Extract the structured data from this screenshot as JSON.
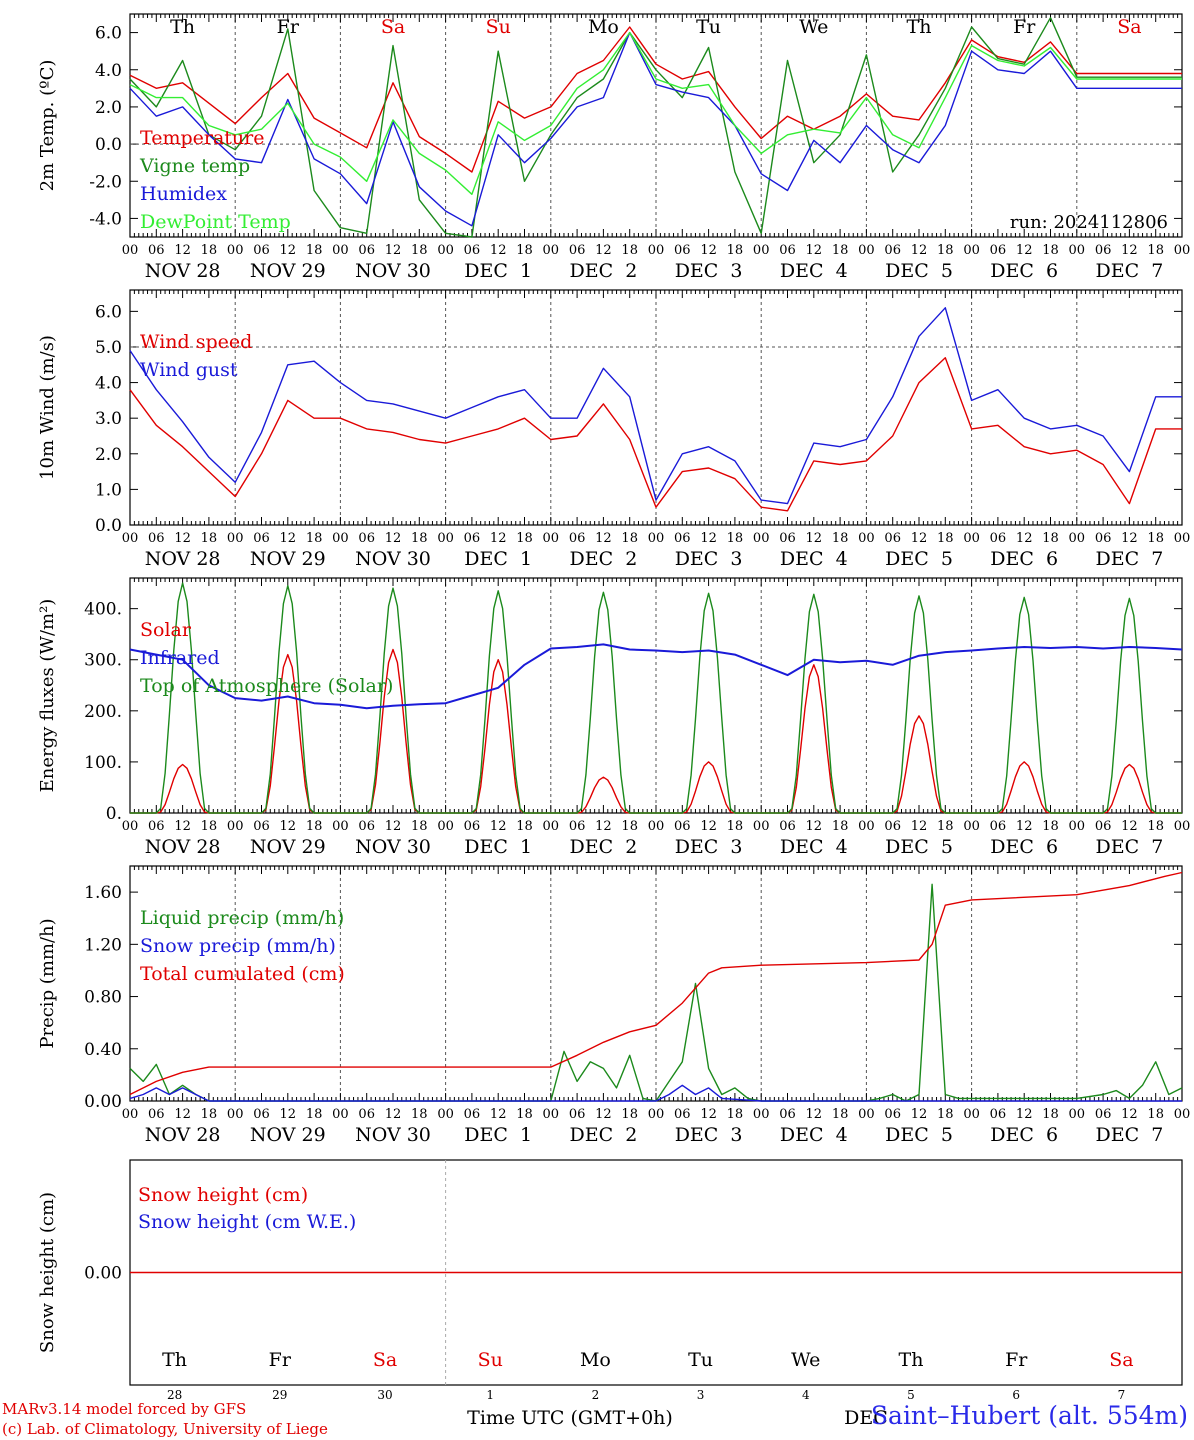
{
  "footer": {
    "credit_line1": "MARv3.14 model forced by GFS",
    "credit_line2": "(c) Lab. of Climatology, University of Liege",
    "station": "Saint–Hubert (alt. 554m)",
    "axis_title": "Time UTC (GMT+0h)",
    "overlap_label": "DEC"
  },
  "run_label": "run: 2024112806",
  "colors": {
    "red": "#e00000",
    "green": "#1c8a1c",
    "blue": "#1a1ad8",
    "lightgreen": "#33ee33",
    "weekend": "#e00000",
    "weekday": "#000000"
  },
  "day_names": [
    "Th",
    "Fr",
    "Sa",
    "Su",
    "Mo",
    "Tu",
    "We",
    "Th",
    "Fr",
    "Sa"
  ],
  "weekend_index": [
    2,
    3,
    9
  ],
  "date_labels": [
    "NOV 28",
    "NOV 29",
    "NOV 30",
    "DEC  1",
    "DEC  2",
    "DEC  3",
    "DEC  4",
    "DEC  5",
    "DEC  6",
    "DEC  7"
  ],
  "day_numbers": [
    "28",
    "29",
    "30",
    "1",
    "2",
    "3",
    "4",
    "5",
    "6",
    "7"
  ],
  "hour_ticks": [
    "00",
    "06",
    "12",
    "18"
  ],
  "last_hour_tick": "00",
  "chart_data": [
    {
      "type": "line",
      "ylabel": "2m Temp. (ºC)",
      "ylim": [
        -5,
        7
      ],
      "yticks": [
        "6.0",
        "4.0",
        "2.0",
        "0.0",
        "-2.0",
        "-4.0"
      ],
      "ytick_values": [
        6,
        4,
        2,
        0,
        -2,
        -4
      ],
      "dashed_hline": 0,
      "x_hours": [
        0,
        6,
        12,
        18,
        24,
        30,
        36,
        42,
        48,
        54,
        60,
        66,
        72,
        78,
        84,
        90,
        96,
        102,
        108,
        114,
        120,
        126,
        132,
        138,
        144,
        150,
        156,
        162,
        168,
        174,
        180,
        186,
        192,
        198,
        204,
        210,
        216,
        222,
        228,
        234,
        240
      ],
      "series": [
        {
          "name": "Temperature",
          "color": "red",
          "values": [
            3.7,
            3.0,
            3.3,
            2.2,
            1.1,
            2.5,
            3.8,
            1.4,
            0.6,
            -0.2,
            3.3,
            0.4,
            -0.5,
            -1.5,
            2.3,
            1.4,
            2.0,
            3.8,
            4.5,
            6.3,
            4.3,
            3.5,
            3.9,
            2.0,
            0.3,
            1.5,
            0.8,
            1.5,
            2.7,
            1.5,
            1.3,
            3.3,
            5.6,
            4.7,
            4.4,
            5.5,
            3.8,
            3.8,
            3.8,
            3.8,
            3.8
          ]
        },
        {
          "name": "Vigne temp",
          "color": "green",
          "values": [
            3.5,
            2.0,
            4.5,
            0.5,
            -0.3,
            1.5,
            6.2,
            -2.5,
            -4.5,
            -4.8,
            5.3,
            -3.0,
            -4.8,
            -5.0,
            5.0,
            -2.0,
            0.5,
            2.5,
            3.5,
            6.0,
            4.0,
            2.5,
            5.2,
            -1.5,
            -4.8,
            4.5,
            -1.0,
            0.5,
            4.8,
            -1.5,
            0.5,
            3.0,
            6.3,
            4.6,
            4.3,
            6.8,
            3.6,
            3.6,
            3.6,
            3.6,
            3.6
          ]
        },
        {
          "name": "Humidex",
          "color": "blue",
          "values": [
            3.0,
            1.5,
            2.0,
            0.5,
            -0.8,
            -1.0,
            2.4,
            -0.8,
            -1.6,
            -3.2,
            1.2,
            -2.3,
            -3.6,
            -4.4,
            0.5,
            -1.0,
            0.3,
            2.0,
            2.5,
            6.0,
            3.2,
            2.8,
            2.5,
            1.0,
            -1.6,
            -2.5,
            0.2,
            -1.0,
            1.0,
            -0.3,
            -1.0,
            1.0,
            5.0,
            4.0,
            3.8,
            5.0,
            3.0,
            3.0,
            3.0,
            3.0,
            3.0
          ]
        },
        {
          "name": "DewPoint Temp",
          "color": "lightgreen",
          "values": [
            3.2,
            2.5,
            2.5,
            1.0,
            0.5,
            0.8,
            2.2,
            0.0,
            -0.7,
            -2.0,
            1.3,
            -0.5,
            -1.4,
            -2.7,
            1.2,
            0.2,
            1.0,
            3.0,
            4.0,
            6.0,
            3.5,
            3.0,
            3.2,
            1.0,
            -0.5,
            0.5,
            0.8,
            0.6,
            2.5,
            0.5,
            -0.2,
            2.5,
            5.3,
            4.5,
            4.2,
            5.2,
            3.5,
            3.5,
            3.5,
            3.5,
            3.5
          ]
        }
      ]
    },
    {
      "type": "line",
      "ylabel": "10m Wind (m/s)",
      "ylim": [
        0,
        6.6
      ],
      "yticks": [
        "6.0",
        "5.0",
        "4.0",
        "3.0",
        "2.0",
        "1.0",
        "0.0"
      ],
      "ytick_values": [
        6,
        5,
        4,
        3,
        2,
        1,
        0
      ],
      "dashed_hline": 5,
      "x_hours": [
        0,
        6,
        12,
        18,
        24,
        30,
        36,
        42,
        48,
        54,
        60,
        66,
        72,
        78,
        84,
        90,
        96,
        102,
        108,
        114,
        120,
        126,
        132,
        138,
        144,
        150,
        156,
        162,
        168,
        174,
        180,
        186,
        192,
        198,
        204,
        210,
        216,
        222,
        228,
        234,
        240
      ],
      "series": [
        {
          "name": "Wind speed",
          "color": "red",
          "values": [
            3.8,
            2.8,
            2.2,
            1.5,
            0.8,
            2.0,
            3.5,
            3.0,
            3.0,
            2.7,
            2.6,
            2.4,
            2.3,
            2.5,
            2.7,
            3.0,
            2.4,
            2.5,
            3.4,
            2.4,
            0.5,
            1.5,
            1.6,
            1.3,
            0.5,
            0.4,
            1.8,
            1.7,
            1.8,
            2.5,
            4.0,
            4.7,
            2.7,
            2.8,
            2.2,
            2.0,
            2.1,
            1.7,
            0.6,
            2.7,
            2.7
          ]
        },
        {
          "name": "Wind gust",
          "color": "blue",
          "values": [
            4.9,
            3.8,
            2.9,
            1.9,
            1.2,
            2.6,
            4.5,
            4.6,
            4.0,
            3.5,
            3.4,
            3.2,
            3.0,
            3.3,
            3.6,
            3.8,
            3.0,
            3.0,
            4.4,
            3.6,
            0.7,
            2.0,
            2.2,
            1.8,
            0.7,
            0.6,
            2.3,
            2.2,
            2.4,
            3.6,
            5.3,
            6.1,
            3.5,
            3.8,
            3.0,
            2.7,
            2.8,
            2.5,
            1.5,
            3.6,
            3.6
          ]
        }
      ]
    },
    {
      "type": "line",
      "ylabel": "Energy fluxes (W/m²)",
      "ylim": [
        0,
        460
      ],
      "yticks": [
        "400.",
        "300.",
        "200.",
        "100.",
        "0."
      ],
      "ytick_values": [
        400,
        300,
        200,
        100,
        0
      ],
      "dashed_hline": null,
      "day_peak_hour": 12,
      "day_half_width_hours": 5,
      "series": [
        {
          "name": "Solar",
          "color": "red",
          "peaks": [
            95,
            310,
            320,
            300,
            70,
            100,
            290,
            190,
            100,
            95
          ]
        },
        {
          "name": "Top of Atmosphere (Solar)",
          "color": "green",
          "peaks": [
            450,
            445,
            440,
            435,
            432,
            430,
            428,
            425,
            422,
            420
          ]
        },
        {
          "name": "Infrared",
          "color": "blue",
          "x_hours": [
            0,
            6,
            12,
            18,
            24,
            30,
            36,
            42,
            48,
            54,
            60,
            66,
            72,
            78,
            84,
            90,
            96,
            102,
            108,
            114,
            120,
            126,
            132,
            138,
            144,
            150,
            156,
            162,
            168,
            174,
            180,
            186,
            192,
            198,
            204,
            210,
            216,
            222,
            228,
            234,
            240
          ],
          "values": [
            320,
            310,
            300,
            250,
            225,
            220,
            228,
            215,
            212,
            205,
            210,
            213,
            215,
            230,
            245,
            290,
            322,
            325,
            330,
            320,
            318,
            315,
            318,
            310,
            290,
            270,
            300,
            295,
            298,
            290,
            308,
            315,
            318,
            322,
            325,
            323,
            325,
            322,
            325,
            323,
            320
          ]
        }
      ],
      "legend_order": [
        "Solar",
        "Infrared",
        "Top of Atmosphere (Solar)"
      ]
    },
    {
      "type": "line",
      "ylabel": "Precip (mm/h)",
      "ylim": [
        0,
        1.8
      ],
      "yticks": [
        "1.60",
        "1.20",
        "0.80",
        "0.40",
        "0.00"
      ],
      "ytick_values": [
        1.6,
        1.2,
        0.8,
        0.4,
        0
      ],
      "dashed_hline": null,
      "series": [
        {
          "name": "Liquid precip (mm/h)",
          "color": "green",
          "x_hours": [
            0,
            3,
            6,
            9,
            12,
            15,
            18,
            21,
            24,
            96,
            99,
            102,
            105,
            108,
            111,
            114,
            117,
            120,
            123,
            126,
            129,
            132,
            135,
            138,
            141,
            144,
            168,
            171,
            174,
            177,
            180,
            183,
            186,
            189,
            192,
            216,
            222,
            225,
            228,
            231,
            234,
            237,
            240
          ],
          "values": [
            0.25,
            0.15,
            0.28,
            0.05,
            0.12,
            0.05,
            0.0,
            0.0,
            0.0,
            0.0,
            0.38,
            0.15,
            0.3,
            0.25,
            0.1,
            0.35,
            0.02,
            0.0,
            0.15,
            0.3,
            0.9,
            0.25,
            0.05,
            0.1,
            0.02,
            0.0,
            0.0,
            0.02,
            0.05,
            0.0,
            0.05,
            1.66,
            0.05,
            0.02,
            0.02,
            0.02,
            0.05,
            0.08,
            0.02,
            0.12,
            0.3,
            0.05,
            0.1
          ]
        },
        {
          "name": "Snow precip (mm/h)",
          "color": "blue",
          "x_hours": [
            0,
            3,
            6,
            9,
            12,
            15,
            18,
            21,
            24,
            96,
            120,
            123,
            126,
            129,
            132,
            135,
            144,
            192,
            240
          ],
          "values": [
            0.02,
            0.05,
            0.1,
            0.05,
            0.1,
            0.05,
            0.0,
            0.0,
            0.0,
            0.0,
            0.0,
            0.05,
            0.12,
            0.05,
            0.1,
            0.02,
            0.0,
            0.0,
            0.0
          ]
        },
        {
          "name": "Total cumulated (cm)",
          "color": "red",
          "x_hours": [
            0,
            6,
            12,
            18,
            24,
            96,
            102,
            108,
            114,
            120,
            126,
            132,
            135,
            144,
            168,
            180,
            183,
            186,
            192,
            216,
            228,
            236,
            240
          ],
          "values": [
            0.05,
            0.15,
            0.22,
            0.26,
            0.26,
            0.26,
            0.35,
            0.45,
            0.53,
            0.58,
            0.75,
            0.98,
            1.02,
            1.04,
            1.06,
            1.08,
            1.2,
            1.5,
            1.54,
            1.58,
            1.65,
            1.72,
            1.75
          ]
        }
      ]
    },
    {
      "type": "line",
      "ylabel": "Snow height (cm)",
      "ylim": [
        -1,
        1
      ],
      "yticks": [
        "0.00"
      ],
      "ytick_values": [
        0
      ],
      "dashed_hline": null,
      "series": [
        {
          "name": "Snow height (cm)",
          "color": "red",
          "x_hours": [
            0,
            240
          ],
          "values": [
            0,
            0
          ]
        },
        {
          "name": "Snow height (cm W.E.)",
          "color": "blue",
          "x_hours": [],
          "values": []
        }
      ]
    }
  ]
}
